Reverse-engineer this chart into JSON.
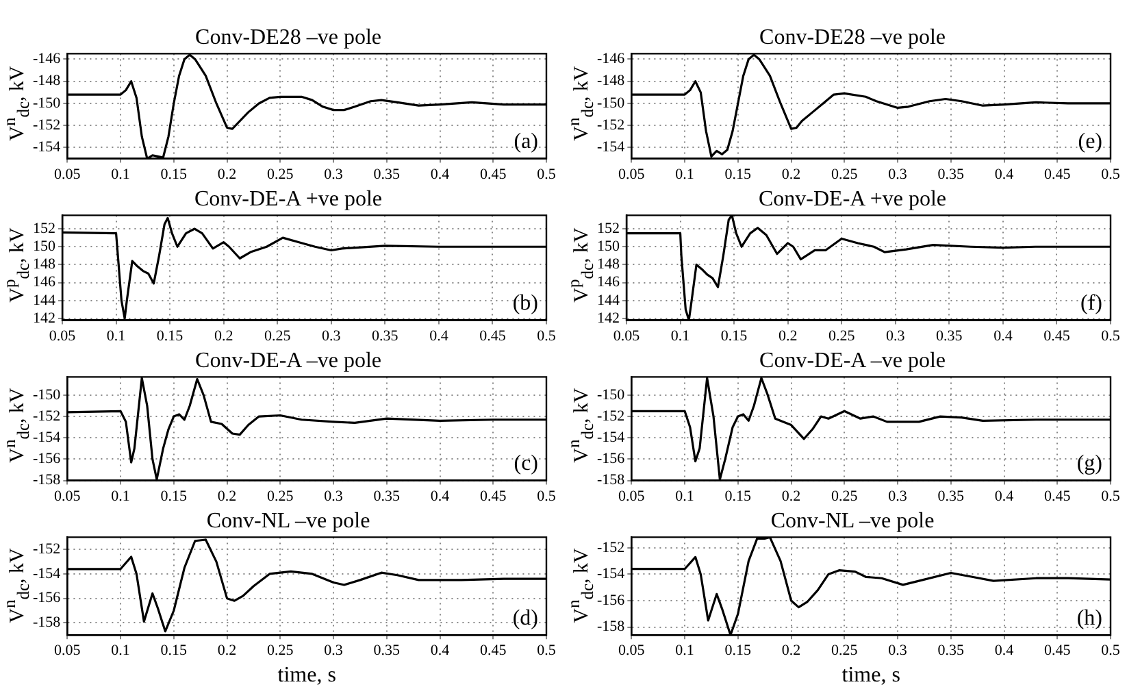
{
  "chart_data": [
    {
      "type": "line",
      "title": "Conv-DE28 –ve pole",
      "ylabel": "V$^{n}$$_{dc}$, kV",
      "color": "#000000",
      "grid": true,
      "annotations": [
        "(a)"
      ],
      "xlim": [
        0.05,
        0.5
      ],
      "xticks": [
        0.05,
        0.1,
        0.15,
        0.2,
        0.25,
        0.3,
        0.35,
        0.4,
        0.45,
        0.5
      ],
      "ylim": [
        -155,
        -145.5
      ],
      "yticks": [
        -154,
        -152,
        -150,
        -148,
        -146
      ],
      "x": [
        0.05,
        0.1,
        0.105,
        0.11,
        0.115,
        0.12,
        0.125,
        0.13,
        0.135,
        0.14,
        0.145,
        0.15,
        0.155,
        0.16,
        0.165,
        0.17,
        0.18,
        0.19,
        0.2,
        0.205,
        0.21,
        0.22,
        0.23,
        0.24,
        0.25,
        0.27,
        0.28,
        0.29,
        0.3,
        0.31,
        0.32,
        0.335,
        0.345,
        0.36,
        0.38,
        0.4,
        0.43,
        0.46,
        0.5
      ],
      "values": [
        -149.2,
        -149.2,
        -148.8,
        -148.0,
        -149.5,
        -153,
        -155,
        -154.7,
        -154.8,
        -154.9,
        -153,
        -150,
        -147.5,
        -146,
        -145.6,
        -146,
        -147.5,
        -150,
        -152.2,
        -152.3,
        -151.8,
        -150.8,
        -150,
        -149.5,
        -149.4,
        -149.4,
        -149.7,
        -150.3,
        -150.6,
        -150.6,
        -150.3,
        -149.8,
        -149.7,
        -149.9,
        -150.2,
        -150.1,
        -149.9,
        -150.1,
        -150.1
      ]
    },
    {
      "type": "line",
      "title": "Conv-DE-A +ve pole",
      "ylabel": "V$^{p}$$_{dc}$, kV",
      "color": "#000000",
      "grid": true,
      "annotations": [
        "(b)"
      ],
      "xlim": [
        0.05,
        0.5
      ],
      "xticks": [
        0.05,
        0.1,
        0.15,
        0.2,
        0.25,
        0.3,
        0.35,
        0.4,
        0.45,
        0.5
      ],
      "ylim": [
        141.8,
        153.5
      ],
      "yticks": [
        142,
        144,
        146,
        148,
        150,
        152
      ],
      "x": [
        0.05,
        0.1,
        0.101,
        0.105,
        0.108,
        0.11,
        0.115,
        0.12,
        0.125,
        0.13,
        0.135,
        0.14,
        0.145,
        0.148,
        0.152,
        0.157,
        0.165,
        0.173,
        0.18,
        0.19,
        0.2,
        0.205,
        0.215,
        0.225,
        0.24,
        0.255,
        0.27,
        0.285,
        0.3,
        0.31,
        0.35,
        0.4,
        0.45,
        0.5
      ],
      "values": [
        151.6,
        151.5,
        150,
        144,
        142,
        144,
        148.4,
        147.8,
        147.3,
        147,
        145.9,
        149,
        152.5,
        153.2,
        151.5,
        150,
        151.5,
        152,
        151.5,
        149.8,
        150.5,
        150,
        148.7,
        149.4,
        150,
        151,
        150.5,
        150,
        149.6,
        149.8,
        150.1,
        150,
        150,
        150
      ]
    },
    {
      "type": "line",
      "title": "Conv-DE-A –ve pole",
      "ylabel": "V$^{n}$$_{dc}$, kV",
      "color": "#000000",
      "grid": true,
      "annotations": [
        "(c)"
      ],
      "xlim": [
        0.05,
        0.5
      ],
      "xticks": [
        0.05,
        0.1,
        0.15,
        0.2,
        0.25,
        0.3,
        0.35,
        0.4,
        0.45,
        0.5
      ],
      "ylim": [
        -158,
        -148.3
      ],
      "yticks": [
        -158,
        -156,
        -154,
        -152,
        -150
      ],
      "x": [
        0.05,
        0.1,
        0.105,
        0.11,
        0.113,
        0.12,
        0.125,
        0.13,
        0.134,
        0.14,
        0.145,
        0.15,
        0.155,
        0.16,
        0.165,
        0.172,
        0.178,
        0.185,
        0.195,
        0.205,
        0.212,
        0.22,
        0.23,
        0.25,
        0.27,
        0.3,
        0.32,
        0.35,
        0.4,
        0.45,
        0.5
      ],
      "values": [
        -151.6,
        -151.5,
        -152.5,
        -156.3,
        -155,
        -148.4,
        -151,
        -156,
        -157.9,
        -155,
        -153.2,
        -152,
        -151.8,
        -152.3,
        -151,
        -148.5,
        -150,
        -152.5,
        -152.7,
        -153.6,
        -153.7,
        -152.8,
        -152,
        -151.9,
        -152.3,
        -152.5,
        -152.6,
        -152.2,
        -152.4,
        -152.3,
        -152.3
      ]
    },
    {
      "type": "line",
      "title": "Conv-NL –ve pole",
      "xlabel": "time, s",
      "ylabel": "V$^{n}$$_{dc}$, kV",
      "color": "#000000",
      "grid": true,
      "annotations": [
        "(d)"
      ],
      "xlim": [
        0.05,
        0.5
      ],
      "xticks": [
        0.05,
        0.1,
        0.15,
        0.2,
        0.25,
        0.3,
        0.35,
        0.4,
        0.45,
        0.5
      ],
      "ylim": [
        -159,
        -151
      ],
      "yticks": [
        -158,
        -156,
        -154,
        -152
      ],
      "x": [
        0.05,
        0.1,
        0.11,
        0.115,
        0.122,
        0.13,
        0.135,
        0.142,
        0.15,
        0.16,
        0.17,
        0.18,
        0.19,
        0.2,
        0.207,
        0.215,
        0.225,
        0.24,
        0.26,
        0.28,
        0.3,
        0.31,
        0.325,
        0.345,
        0.36,
        0.38,
        0.42,
        0.46,
        0.5
      ],
      "values": [
        -153.6,
        -153.6,
        -152.6,
        -154,
        -157.9,
        -155.6,
        -156.8,
        -158.7,
        -157,
        -153.5,
        -151.3,
        -151.2,
        -153,
        -156,
        -156.2,
        -155.8,
        -155,
        -154,
        -153.8,
        -154,
        -154.7,
        -154.9,
        -154.5,
        -153.9,
        -154.1,
        -154.5,
        -154.5,
        -154.4,
        -154.4
      ]
    },
    {
      "type": "line",
      "title": "Conv-DE28 –ve pole",
      "ylabel": "V$^{n}$$_{dc}$, kV",
      "color": "#000000",
      "grid": true,
      "annotations": [
        "(e)"
      ],
      "xlim": [
        0.05,
        0.5
      ],
      "xticks": [
        0.05,
        0.1,
        0.15,
        0.2,
        0.25,
        0.3,
        0.35,
        0.4,
        0.45,
        0.5
      ],
      "ylim": [
        -155,
        -145.5
      ],
      "yticks": [
        -154,
        -152,
        -150,
        -148,
        -146
      ],
      "x": [
        0.05,
        0.1,
        0.105,
        0.11,
        0.115,
        0.12,
        0.125,
        0.13,
        0.135,
        0.14,
        0.145,
        0.15,
        0.155,
        0.16,
        0.165,
        0.17,
        0.18,
        0.19,
        0.2,
        0.205,
        0.21,
        0.22,
        0.23,
        0.24,
        0.25,
        0.27,
        0.28,
        0.3,
        0.31,
        0.33,
        0.345,
        0.36,
        0.38,
        0.4,
        0.43,
        0.46,
        0.5
      ],
      "values": [
        -149.2,
        -149.2,
        -148.8,
        -148,
        -149,
        -152.5,
        -154.8,
        -154.3,
        -154.6,
        -154.2,
        -152.5,
        -150,
        -147.5,
        -146,
        -145.6,
        -146,
        -147.5,
        -150,
        -152.3,
        -152.2,
        -151.6,
        -150.8,
        -150,
        -149.2,
        -149.1,
        -149.4,
        -149.8,
        -150.4,
        -150.3,
        -149.8,
        -149.6,
        -149.8,
        -150.2,
        -150.1,
        -149.9,
        -150,
        -150
      ]
    },
    {
      "type": "line",
      "title": "Conv-DE-A +ve pole",
      "ylabel": "V$^{p}$$_{dc}$, kV",
      "color": "#000000",
      "grid": true,
      "annotations": [
        "(f)"
      ],
      "xlim": [
        0.05,
        0.5
      ],
      "xticks": [
        0.05,
        0.1,
        0.15,
        0.2,
        0.25,
        0.3,
        0.35,
        0.4,
        0.45,
        0.5
      ],
      "ylim": [
        141.8,
        153.5
      ],
      "yticks": [
        142,
        144,
        146,
        148,
        150,
        152
      ],
      "x": [
        0.05,
        0.1,
        0.101,
        0.105,
        0.108,
        0.11,
        0.115,
        0.12,
        0.125,
        0.13,
        0.135,
        0.14,
        0.145,
        0.148,
        0.152,
        0.157,
        0.165,
        0.172,
        0.18,
        0.19,
        0.2,
        0.205,
        0.212,
        0.225,
        0.235,
        0.25,
        0.265,
        0.28,
        0.29,
        0.31,
        0.335,
        0.37,
        0.4,
        0.43,
        0.5
      ],
      "values": [
        151.5,
        151.5,
        149,
        143,
        141.8,
        143.5,
        148,
        147.5,
        146.9,
        146.5,
        145.5,
        149,
        153,
        153.5,
        151.5,
        150,
        151.5,
        152.1,
        151.3,
        149.2,
        150.4,
        150,
        148.6,
        149.6,
        149.6,
        150.9,
        150.4,
        150,
        149.4,
        149.7,
        150.2,
        150,
        149.9,
        150,
        150
      ]
    },
    {
      "type": "line",
      "title": "Conv-DE-A –ve pole",
      "ylabel": "V$^{n}$$_{dc}$, kV",
      "color": "#000000",
      "grid": true,
      "annotations": [
        "(g)"
      ],
      "xlim": [
        0.05,
        0.5
      ],
      "xticks": [
        0.05,
        0.1,
        0.15,
        0.2,
        0.25,
        0.3,
        0.35,
        0.4,
        0.45,
        0.5
      ],
      "ylim": [
        -158,
        -148.3
      ],
      "yticks": [
        -158,
        -156,
        -154,
        -152,
        -150
      ],
      "x": [
        0.05,
        0.1,
        0.105,
        0.11,
        0.114,
        0.121,
        0.127,
        0.133,
        0.138,
        0.145,
        0.15,
        0.155,
        0.16,
        0.165,
        0.172,
        0.178,
        0.185,
        0.2,
        0.212,
        0.22,
        0.228,
        0.235,
        0.25,
        0.265,
        0.277,
        0.29,
        0.32,
        0.34,
        0.36,
        0.38,
        0.43,
        0.5
      ],
      "values": [
        -151.5,
        -151.5,
        -153,
        -156.2,
        -155,
        -148.4,
        -152,
        -157.9,
        -156,
        -153,
        -152,
        -151.8,
        -152.4,
        -151,
        -148.4,
        -150,
        -152.2,
        -152.8,
        -154.1,
        -153.2,
        -152,
        -152.2,
        -151.5,
        -152.2,
        -152,
        -152.5,
        -152.5,
        -152,
        -152.1,
        -152.4,
        -152.3,
        -152.3
      ]
    },
    {
      "type": "line",
      "title": "Conv-NL –ve pole",
      "xlabel": "time, s",
      "ylabel": "V$^{n}$$_{dc}$, kV",
      "color": "#000000",
      "grid": true,
      "annotations": [
        "(h)"
      ],
      "xlim": [
        0.05,
        0.5
      ],
      "xticks": [
        0.05,
        0.1,
        0.15,
        0.2,
        0.25,
        0.3,
        0.35,
        0.4,
        0.45,
        0.5
      ],
      "ylim": [
        -158.6,
        -151.2
      ],
      "yticks": [
        -158,
        -156,
        -154,
        -152
      ],
      "x": [
        0.05,
        0.1,
        0.11,
        0.115,
        0.122,
        0.13,
        0.135,
        0.143,
        0.15,
        0.16,
        0.168,
        0.175,
        0.18,
        0.19,
        0.2,
        0.207,
        0.215,
        0.225,
        0.235,
        0.245,
        0.26,
        0.27,
        0.285,
        0.305,
        0.32,
        0.35,
        0.37,
        0.39,
        0.43,
        0.46,
        0.5
      ],
      "values": [
        -153.6,
        -153.6,
        -152.7,
        -154,
        -157.5,
        -155.5,
        -156.6,
        -158.6,
        -157,
        -153,
        -151.3,
        -151.3,
        -151.2,
        -153,
        -156,
        -156.5,
        -156.1,
        -155.2,
        -154,
        -153.7,
        -153.8,
        -154.2,
        -154.3,
        -154.8,
        -154.5,
        -153.9,
        -154.2,
        -154.5,
        -154.3,
        -154.3,
        -154.4
      ]
    }
  ]
}
